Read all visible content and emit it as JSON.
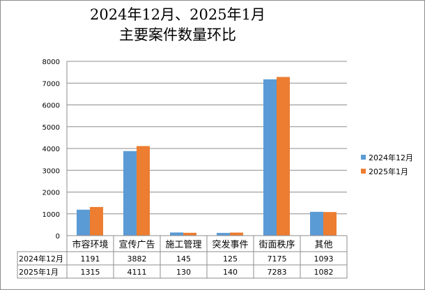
{
  "chart_data": {
    "type": "bar",
    "title_line1": "2024年12月、2025年1月",
    "title_line2": "主要案件数量环比",
    "categories": [
      "市容环境",
      "宣传广告",
      "施工管理",
      "突发事件",
      "街面秩序",
      "其他"
    ],
    "series": [
      {
        "name": "2024年12月",
        "values": [
          1191,
          3882,
          145,
          125,
          7175,
          1093
        ],
        "color": "#5b9bd5"
      },
      {
        "name": "2025年1月",
        "values": [
          1315,
          4111,
          130,
          140,
          7283,
          1082
        ],
        "color": "#ed7d31"
      }
    ],
    "ylim": [
      0,
      8000
    ],
    "yticks": [
      0,
      1000,
      2000,
      3000,
      4000,
      5000,
      6000,
      7000,
      8000
    ],
    "grid": true,
    "legend_placement": "right",
    "data_table": true
  }
}
